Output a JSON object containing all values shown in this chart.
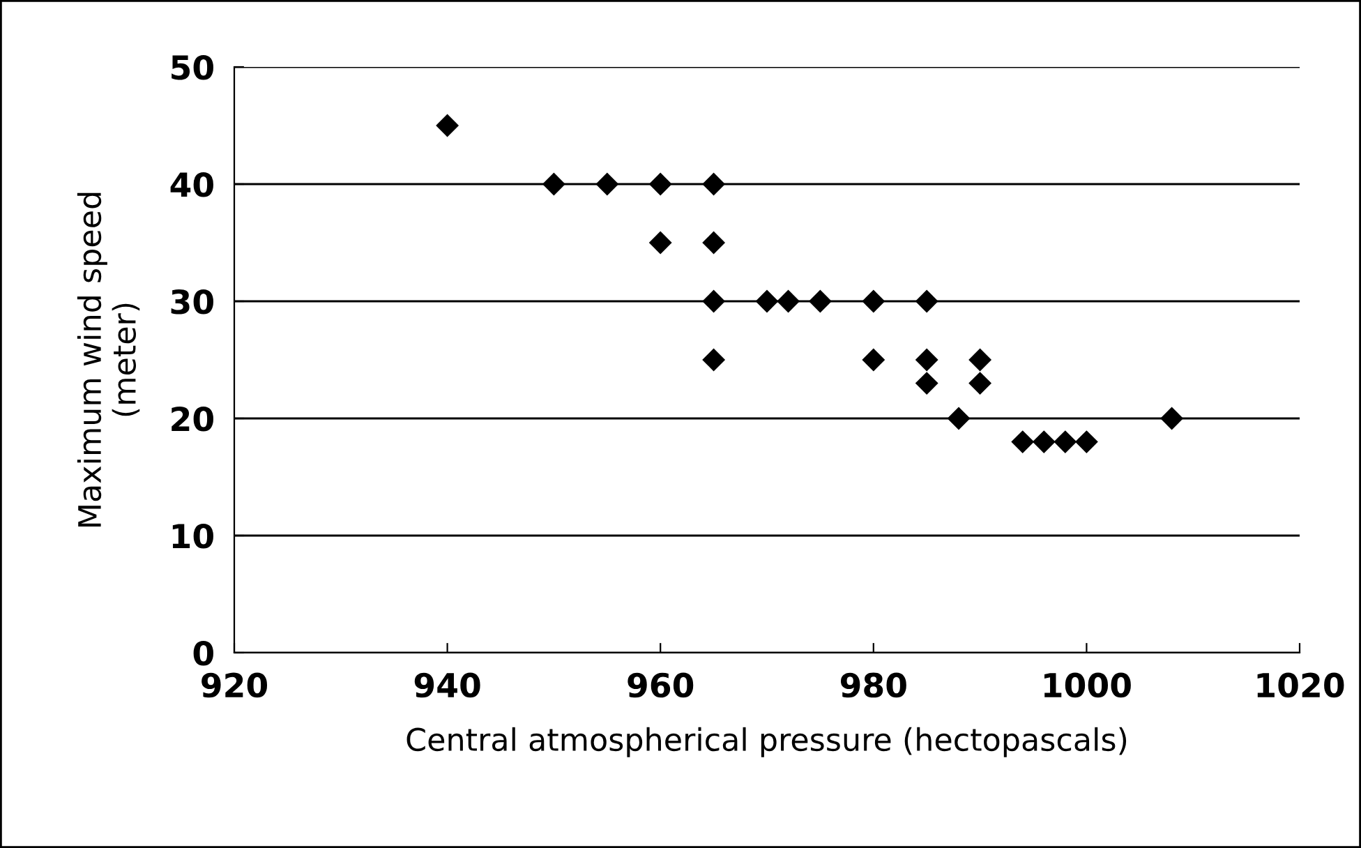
{
  "chart_data": {
    "type": "scatter",
    "xlabel": "Central atmospherical pressure (hectopascals)",
    "ylabel": "Maximum wind speed\n(meter)",
    "x": [
      940,
      950,
      955,
      960,
      965,
      960,
      965,
      965,
      965,
      970,
      972,
      975,
      980,
      985,
      980,
      985,
      985,
      990,
      990,
      988,
      994,
      996,
      998,
      1000,
      1008
    ],
    "values": [
      45,
      40,
      40,
      40,
      40,
      35,
      35,
      30,
      25,
      30,
      30,
      30,
      30,
      30,
      25,
      25,
      23,
      25,
      23,
      20,
      18,
      18,
      18,
      18,
      20
    ],
    "color": "#000000",
    "marker": "diamond",
    "xlim": [
      920,
      1020
    ],
    "xticks": [
      920,
      940,
      960,
      980,
      1000,
      1020
    ],
    "ylim": [
      0,
      50
    ],
    "yticks": [
      0,
      10,
      20,
      30,
      40,
      50
    ],
    "grid": "y"
  }
}
